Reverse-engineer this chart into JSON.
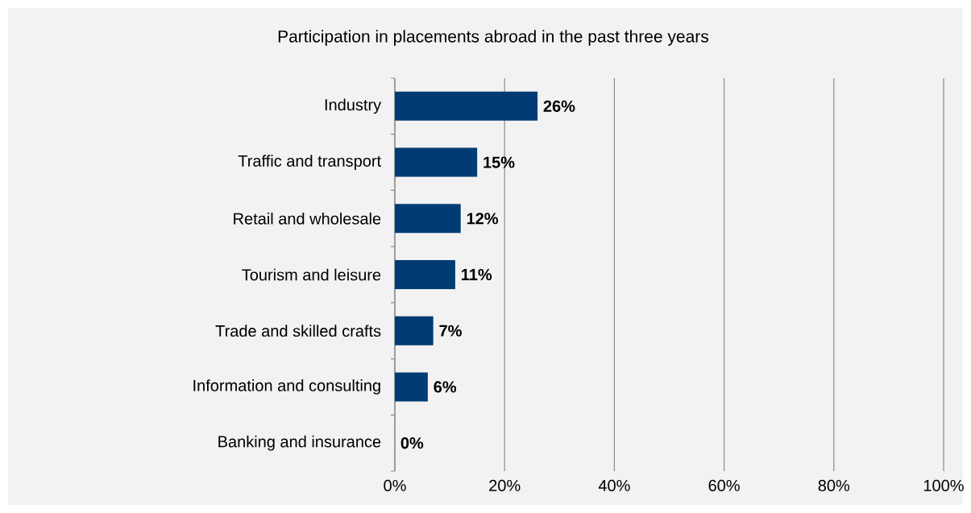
{
  "chart_data": {
    "type": "bar",
    "orientation": "horizontal",
    "title": "Participation in placements abroad in the past three years",
    "categories": [
      "Industry",
      "Traffic and transport",
      "Retail and wholesale",
      "Tourism and leisure",
      "Trade and skilled crafts",
      "Information and consulting",
      "Banking and insurance"
    ],
    "values": [
      26,
      15,
      12,
      11,
      7,
      6,
      0
    ],
    "value_labels": [
      "26%",
      "15%",
      "12%",
      "11%",
      "7%",
      "6%",
      "0%"
    ],
    "color": "#003b73",
    "xlim": [
      0,
      100
    ],
    "xticks": [
      {
        "value": 0,
        "label": "0%"
      },
      {
        "value": 20,
        "label": "20%"
      },
      {
        "value": 40,
        "label": "40%"
      },
      {
        "value": 60,
        "label": "60%"
      },
      {
        "value": 80,
        "label": "80%"
      },
      {
        "value": 100,
        "label": "100%"
      }
    ],
    "grid": "x"
  }
}
